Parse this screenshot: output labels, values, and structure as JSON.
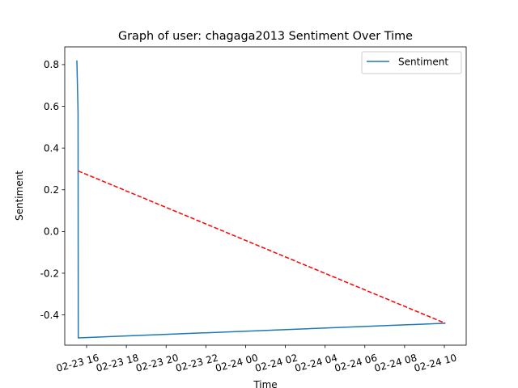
{
  "chart_data": {
    "type": "line",
    "title": "Graph of user: chagaga2013 Sentiment Over Time",
    "xlabel": "Time",
    "ylabel": "Sentiment",
    "x_ticks": [
      "02-23 16",
      "02-23 18",
      "02-23 20",
      "02-23 22",
      "02-24 00",
      "02-24 02",
      "02-24 04",
      "02-24 06",
      "02-24 08",
      "02-24 10"
    ],
    "x_tick_hours": [
      16,
      18,
      20,
      22,
      24,
      26,
      28,
      30,
      32,
      34
    ],
    "x_range_hours": [
      14.9,
      35.1
    ],
    "y_ticks": [
      -0.4,
      -0.2,
      0.0,
      0.2,
      0.4,
      0.6,
      0.8
    ],
    "ylim": [
      -0.545,
      0.885
    ],
    "grid": false,
    "legend": {
      "position": "top-right",
      "entries": [
        "Sentiment"
      ]
    },
    "series": [
      {
        "name": "Sentiment",
        "color": "#1f77b4",
        "style": "solid",
        "points": [
          {
            "x": 15.51,
            "y": 0.82
          },
          {
            "x": 15.57,
            "y": 0.57
          },
          {
            "x": 15.58,
            "y": -0.51
          },
          {
            "x": 34.05,
            "y": -0.44
          }
        ]
      },
      {
        "color": "#ff0000",
        "style": "dashed",
        "points": [
          {
            "x": 15.58,
            "y": 0.29
          },
          {
            "x": 34.05,
            "y": -0.44
          }
        ]
      }
    ]
  }
}
